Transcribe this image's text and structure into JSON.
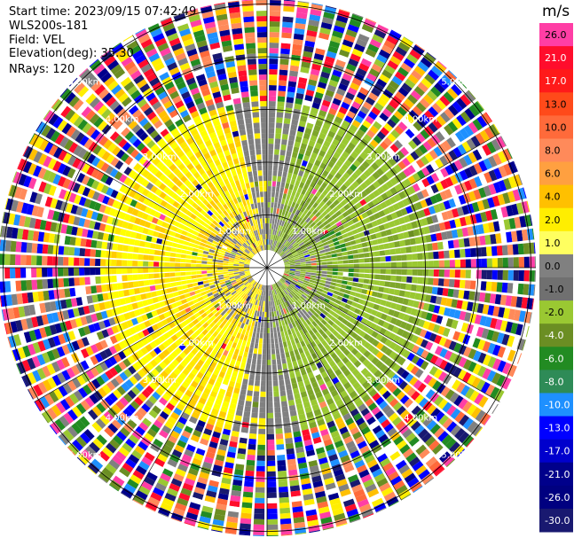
{
  "info": {
    "start_time": "Start time: 2023/09/15 07:42:49",
    "instrument": "WLS200s-181",
    "field": "Field: VEL",
    "elevation": "Elevation(deg): 35.30",
    "nrays": "NRays: 120"
  },
  "chart_data": {
    "type": "heatmap",
    "projection": "polar-ppi",
    "field": "VEL",
    "nrays": 120,
    "range_rings_km": [
      1,
      2,
      3,
      4,
      5
    ],
    "range_ring_labels": [
      "1.00km",
      "2.00km",
      "3.00km",
      "4.00km",
      "5.00km"
    ],
    "colorbar": {
      "unit": "m/s",
      "ticks": [
        "26.0",
        "21.0",
        "17.0",
        "13.0",
        "10.0",
        "8.0",
        "6.0",
        "4.0",
        "2.0",
        "1.0",
        "0.0",
        "-1.0",
        "-2.0",
        "-4.0",
        "-6.0",
        "-8.0",
        "-10.0",
        "-13.0",
        "-17.0",
        "-21.0",
        "-26.0",
        "-30.0"
      ],
      "colors": [
        "#ff3ea5",
        "#ff0d2c",
        "#ff1a1a",
        "#ff4a1a",
        "#ff6a3a",
        "#ff8a5a",
        "#ffa040",
        "#ffc000",
        "#ffee00",
        "#ffff60",
        "#808080",
        "#707070",
        "#9ac832",
        "#6b8e23",
        "#228b22",
        "#2e8b57",
        "#1e90ff",
        "#0000ff",
        "#0000cd",
        "#00008b",
        "#000080",
        "#191970"
      ]
    },
    "velocity_pattern": {
      "west_half": "positive (yellow, 2 to 6 m/s)",
      "east_half": "negative (green, -2 to -6 m/s)",
      "north_south_band": "near zero (gray)",
      "beyond_3km": "noise"
    },
    "grid": true
  }
}
